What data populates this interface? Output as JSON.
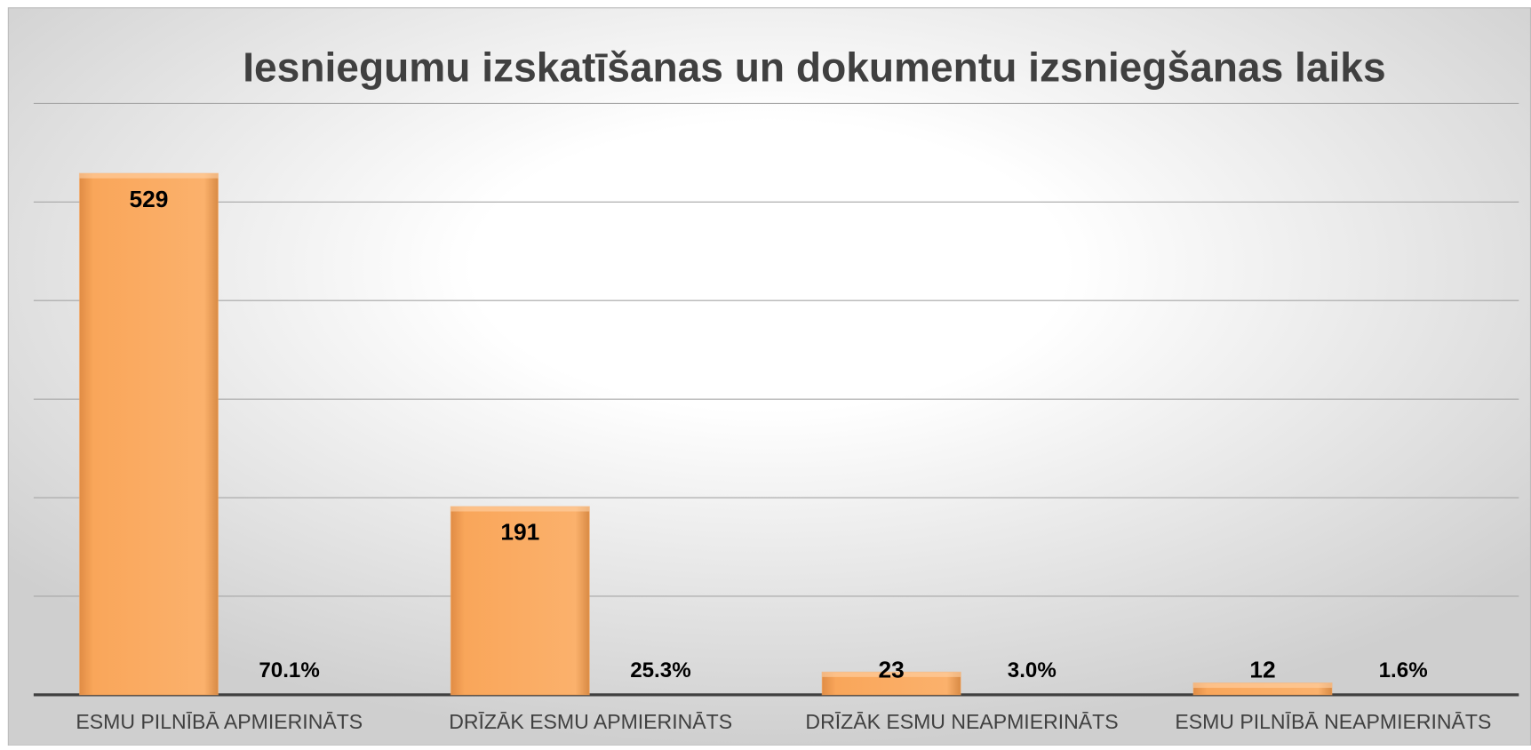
{
  "chart_data": {
    "type": "bar",
    "title": "Iesniegumu izskatīšanas un dokumentu izsniegšanas laiks",
    "categories": [
      "ESMU PILNĪBĀ APMIERINĀTS",
      "DRĪZĀK ESMU APMIERINĀTS",
      "DRĪZĀK ESMU NEAPMIERINĀTS",
      "ESMU PILNĪBĀ NEAPMIERINĀTS"
    ],
    "series": [
      {
        "color": "#f9a65a",
        "values": [
          529,
          191,
          23,
          12
        ]
      },
      {
        "values": [
          70.1,
          25.3,
          3.0,
          1.6
        ],
        "value_labels": [
          "70.1%",
          "25.3%",
          "3.0%",
          "1.6%"
        ]
      }
    ],
    "ylim": [
      0,
      600
    ],
    "yticks": [
      0,
      100,
      200,
      300,
      400,
      500,
      600
    ],
    "grid": true
  }
}
